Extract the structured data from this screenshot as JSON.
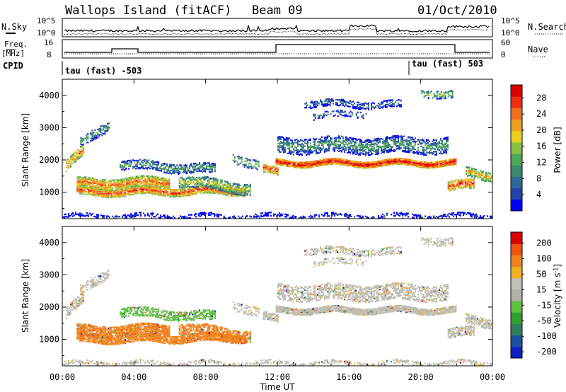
{
  "header": {
    "title": "Wallops Island (fitACF)",
    "beam": "Beam 09",
    "date": "01/Oct/2010"
  },
  "nsky_panel": {
    "left_label": "N.Sky",
    "right_label": "N.Search",
    "ticks_left": [
      "10^5",
      "10^0"
    ],
    "ticks_right": [
      "10^5",
      "10^0"
    ]
  },
  "freq_panel": {
    "left_label_1": "Freq.",
    "left_label_2": "[MHz]",
    "right_label": "Nave",
    "ticks_left": [
      "16",
      "8"
    ],
    "ticks_right": [
      "60",
      "0"
    ]
  },
  "cpid_panel": {
    "label": "CPID",
    "segments": [
      {
        "label": "tau (fast) -503",
        "start_hour": 0
      },
      {
        "label": "tau (fast) 503",
        "start_hour": 19.5
      }
    ]
  },
  "colors": {
    "power": [
      "#0000ff",
      "#2244aa",
      "#336699",
      "#3d8a6e",
      "#4da85a",
      "#88c040",
      "#e8d020",
      "#f0a020",
      "#f07020",
      "#ee3010",
      "#dd0000"
    ],
    "velocity": [
      "#dd0000",
      "#ee5510",
      "#f08020",
      "#f0b020",
      "#c0c0b8",
      "#b0b0a8",
      "#60c040",
      "#30a030",
      "#308060",
      "#2050a0",
      "#1020c0"
    ]
  },
  "chart_data": [
    {
      "type": "heatmap",
      "name": "power",
      "ylabel": "Slant Range [km]",
      "yticks": [
        1000,
        2000,
        3000,
        4000
      ],
      "ylim": [
        180,
        4500
      ],
      "xlim": [
        0,
        24
      ],
      "colorbar": {
        "label": "Power [dB]",
        "ticks": [
          "4",
          "8",
          "12",
          "16",
          "20",
          "24",
          "28"
        ],
        "range": [
          0,
          30
        ]
      }
    },
    {
      "type": "heatmap",
      "name": "velocity",
      "ylabel": "Slant Range [km]",
      "yticks": [
        1000,
        2000,
        3000,
        4000
      ],
      "ylim": [
        180,
        4500
      ],
      "xlim": [
        0,
        24
      ],
      "xlabel": "Time UT",
      "xticks": [
        "00:00",
        "04:00",
        "08:00",
        "12:00",
        "16:00",
        "20:00",
        "00:00"
      ],
      "colorbar": {
        "label": "Velocity [m s",
        "label_sup": "-1",
        "label_end": "]",
        "ticks": [
          "200",
          "100",
          "50",
          "15",
          "-15",
          "-50",
          "-100",
          "-200"
        ]
      }
    }
  ]
}
